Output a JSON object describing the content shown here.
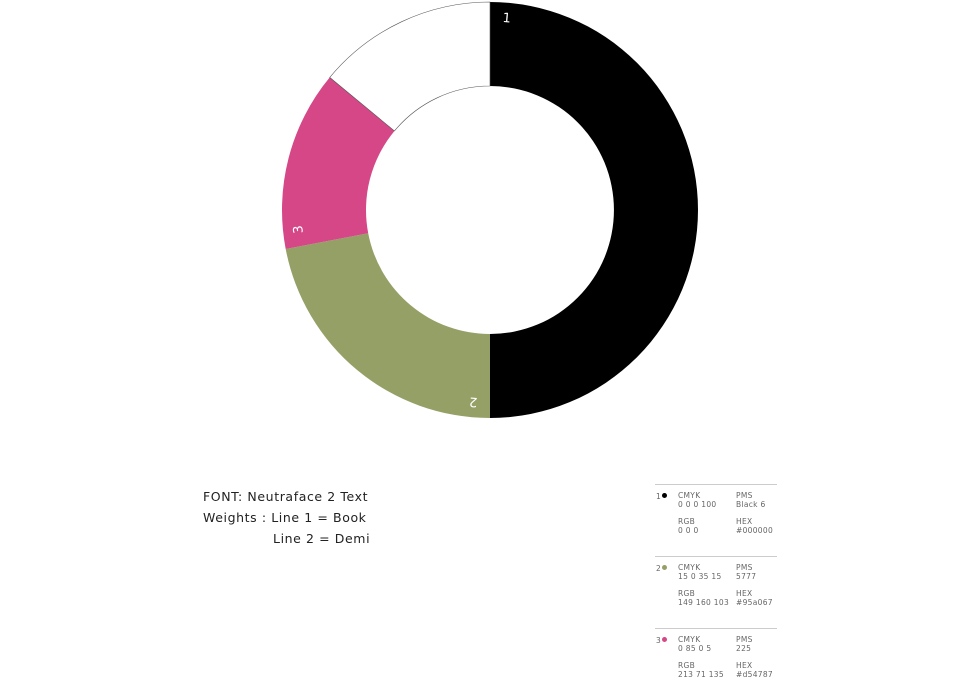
{
  "chart_data": {
    "type": "donut",
    "title": "",
    "slices": [
      {
        "label": "1",
        "value": 50,
        "color": "#000000"
      },
      {
        "label": "2",
        "value": 22,
        "color": "#95a067"
      },
      {
        "label": "3",
        "value": 14,
        "color": "#d54787"
      },
      {
        "label": "",
        "value": 14,
        "color": "#ffffff"
      }
    ]
  },
  "font_info": {
    "line1": "FONT: Neutraface 2 Text",
    "line2": "Weights : Line 1 = Book",
    "line3": "Line 2 = Demi"
  },
  "swatches": [
    {
      "num": "1",
      "color": "#000000",
      "cmyk_label": "CMYK",
      "cmyk": "0 0 0 100",
      "pms_label": "PMS",
      "pms": "Black 6",
      "rgb_label": "RGB",
      "rgb": "0 0 0",
      "hex_label": "HEX",
      "hex": "#000000"
    },
    {
      "num": "2",
      "color": "#95a067",
      "cmyk_label": "CMYK",
      "cmyk": "15 0 35 15",
      "pms_label": "PMS",
      "pms": "5777",
      "rgb_label": "RGB",
      "rgb": "149 160 103",
      "hex_label": "HEX",
      "hex": "#95a067"
    },
    {
      "num": "3",
      "color": "#d54787",
      "cmyk_label": "CMYK",
      "cmyk": "0 85 0 5",
      "pms_label": "PMS",
      "pms": "225",
      "rgb_label": "RGB",
      "rgb": "213 71 135",
      "hex_label": "HEX",
      "hex": "#d54787"
    }
  ]
}
